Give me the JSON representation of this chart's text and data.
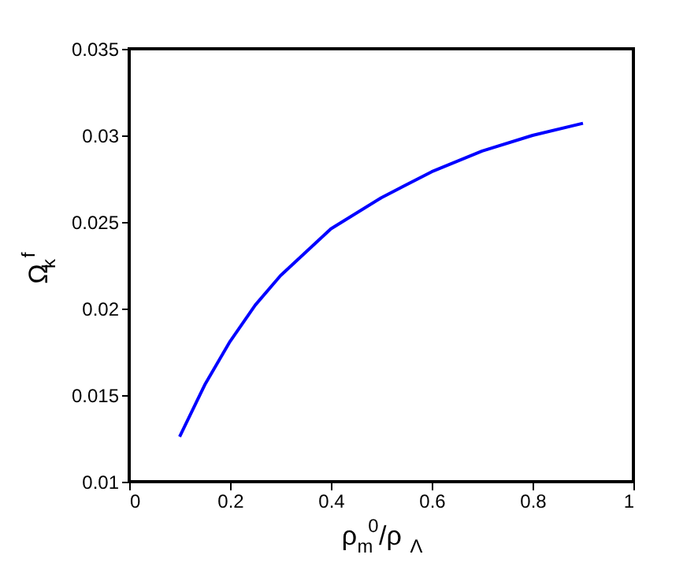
{
  "chart_data": {
    "type": "line",
    "xlabel": "ρ$_{m}$$^{0}$/ρ$_{Λ}$",
    "ylabel": "Ω$_{k}$$^{f}$",
    "x": [
      0.1,
      0.15,
      0.2,
      0.25,
      0.3,
      0.4,
      0.5,
      0.6,
      0.7,
      0.8,
      0.9
    ],
    "series": [
      {
        "color": "#0000ff",
        "values": [
          0.0126,
          0.0156,
          0.0181,
          0.0202,
          0.0219,
          0.0246,
          0.0264,
          0.0279,
          0.0291,
          0.03,
          0.0307
        ]
      }
    ],
    "xlim": [
      0,
      1
    ],
    "ylim": [
      0.01,
      0.035
    ],
    "xticks": [
      0,
      0.2,
      0.4,
      0.6,
      0.8,
      1
    ],
    "yticks": [
      0.01,
      0.015,
      0.02,
      0.025,
      0.03,
      0.035
    ],
    "grid": false,
    "marker": "none",
    "line_style": "solid"
  }
}
